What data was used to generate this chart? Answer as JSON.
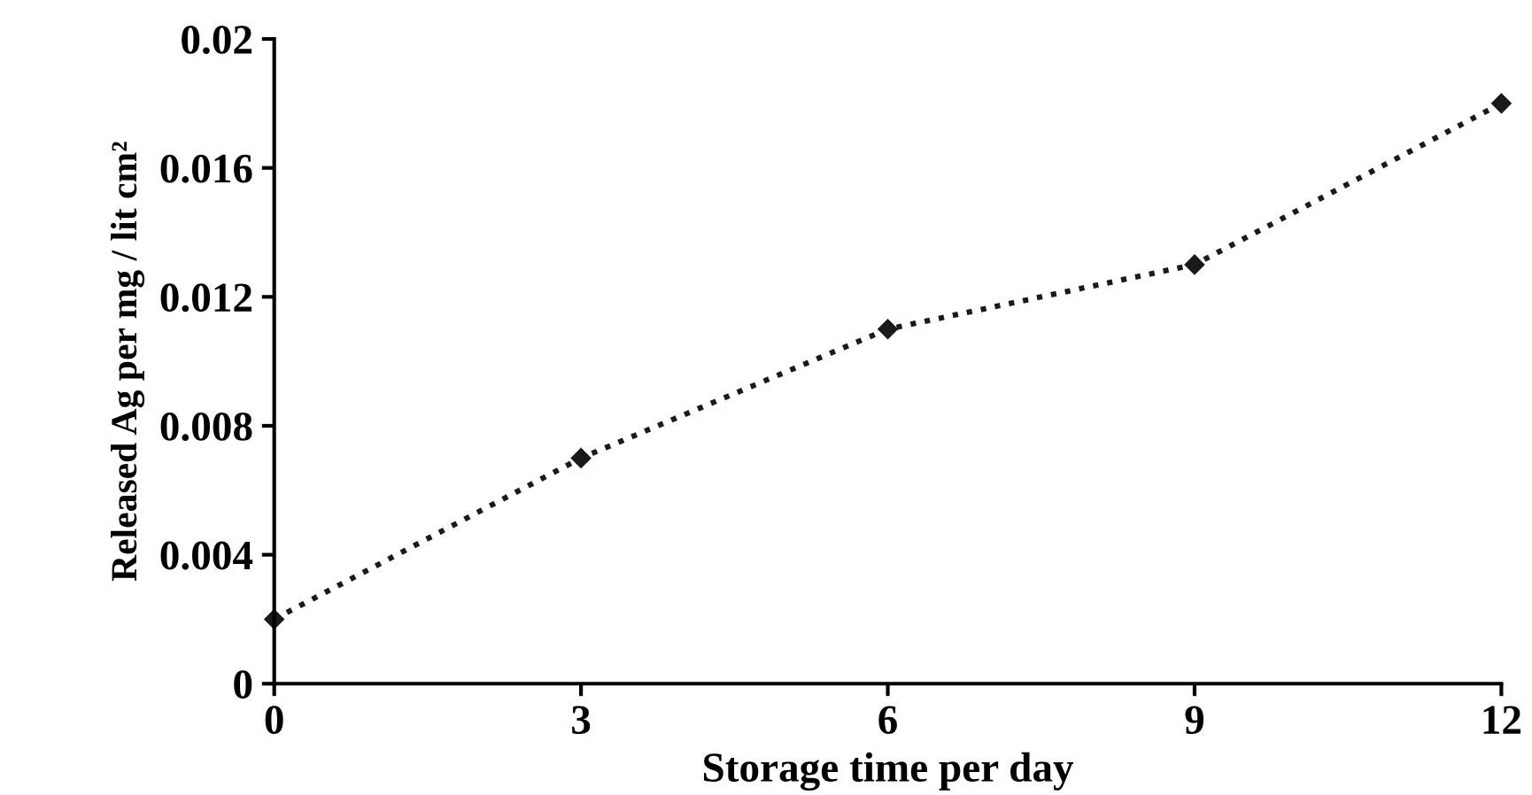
{
  "chart_data": {
    "type": "line",
    "xlabel": "Storage time per day",
    "ylabel": "Released Ag per mg / lit cm²",
    "x": [
      0,
      3,
      6,
      9,
      12
    ],
    "series": [
      {
        "color": "#1a1a1a",
        "values": [
          0.002,
          0.007,
          0.011,
          0.013,
          0.018
        ]
      }
    ],
    "xlim": [
      0,
      12
    ],
    "xticks": [
      0,
      3,
      6,
      9,
      12
    ],
    "ylim": [
      0,
      0.02
    ],
    "yticks": [
      0,
      0.004,
      0.008,
      0.012,
      0.016,
      0.02
    ],
    "marker": "diamond",
    "line_style": "dotted",
    "grid": false,
    "legend": false
  }
}
